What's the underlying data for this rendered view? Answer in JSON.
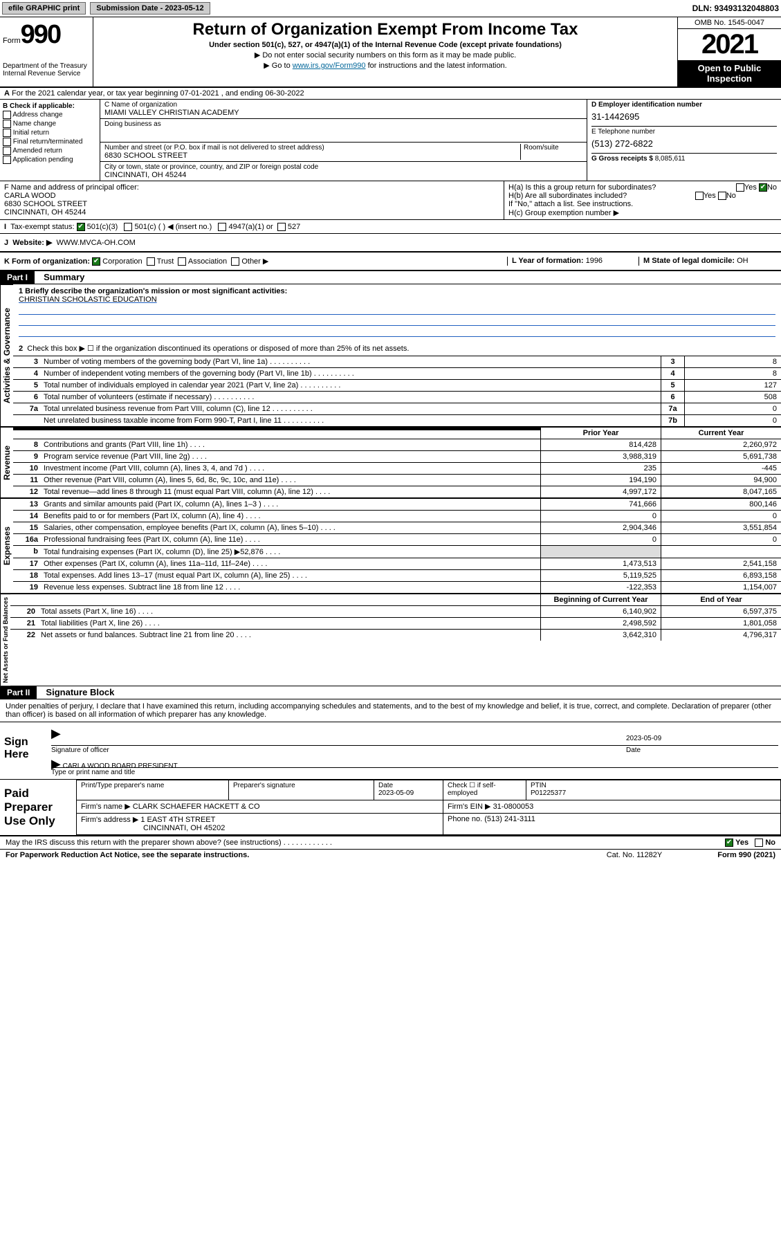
{
  "topbar": {
    "efile": "efile GRAPHIC print",
    "submission_label": "Submission Date - 2023-05-12",
    "dln": "DLN: 93493132048803"
  },
  "header": {
    "form_word": "Form",
    "form_number": "990",
    "dept": "Department of the Treasury",
    "irs": "Internal Revenue Service",
    "title": "Return of Organization Exempt From Income Tax",
    "subtitle": "Under section 501(c), 527, or 4947(a)(1) of the Internal Revenue Code (except private foundations)",
    "note1": "▶ Do not enter social security numbers on this form as it may be made public.",
    "note2_prefix": "▶ Go to ",
    "note2_link": "www.irs.gov/Form990",
    "note2_suffix": " for instructions and the latest information.",
    "omb": "OMB No. 1545-0047",
    "year": "2021",
    "open_public": "Open to Public Inspection"
  },
  "lineA": "For the 2021 calendar year, or tax year beginning 07-01-2021   , and ending 06-30-2022",
  "checkB": {
    "label": "B Check if applicable:",
    "items": [
      "Address change",
      "Name change",
      "Initial return",
      "Final return/terminated",
      "Amended return",
      "Application pending"
    ]
  },
  "blockC": {
    "name_label": "C Name of organization",
    "name": "MIAMI VALLEY CHRISTIAN ACADEMY",
    "dba_label": "Doing business as",
    "dba": "",
    "addr_label": "Number and street (or P.O. box if mail is not delivered to street address)",
    "room_label": "Room/suite",
    "addr": "6830 SCHOOL STREET",
    "city_label": "City or town, state or province, country, and ZIP or foreign postal code",
    "city": "CINCINNATI, OH  45244"
  },
  "blockD": {
    "label": "D Employer identification number",
    "ein": "31-1442695",
    "tel_label": "E Telephone number",
    "tel": "(513) 272-6822",
    "gross_label": "G Gross receipts $",
    "gross": "8,085,611"
  },
  "blockF": {
    "label": "F Name and address of principal officer:",
    "name": "CARLA WOOD",
    "addr1": "6830 SCHOOL STREET",
    "addr2": "CINCINNATI, OH  45244"
  },
  "blockH": {
    "ha": "H(a)  Is this a group return for subordinates?",
    "ha_no": "No",
    "hb": "H(b)  Are all subordinates included?",
    "hb_note": "If \"No,\" attach a list. See instructions.",
    "hc": "H(c)  Group exemption number ▶"
  },
  "lineI": {
    "label": "Tax-exempt status:",
    "c3": "501(c)(3)",
    "c_other": "501(c) (   ) ◀ (insert no.)",
    "a1": "4947(a)(1) or",
    "s527": "527"
  },
  "lineJ": {
    "label": "Website: ▶",
    "value": "WWW.MVCA-OH.COM"
  },
  "lineK": {
    "label": "K Form of organization:",
    "opts": [
      "Corporation",
      "Trust",
      "Association",
      "Other ▶"
    ]
  },
  "lineL": {
    "label": "L Year of formation:",
    "value": "1996"
  },
  "lineM": {
    "label": "M State of legal domicile:",
    "value": "OH"
  },
  "partI": {
    "hdr": "Part I",
    "title": "Summary",
    "q1_label": "1   Briefly describe the organization's mission or most significant activities:",
    "q1_value": "CHRISTIAN SCHOLASTIC EDUCATION",
    "q2": "Check this box ▶ ☐  if the organization discontinued its operations or disposed of more than 25% of its net assets.",
    "vert_gov": "Activities & Governance",
    "vert_rev": "Revenue",
    "vert_exp": "Expenses",
    "vert_net": "Net Assets or Fund Balances",
    "lines_gov": [
      {
        "n": "3",
        "d": "Number of voting members of the governing body (Part VI, line 1a)",
        "box": "3",
        "v": "8"
      },
      {
        "n": "4",
        "d": "Number of independent voting members of the governing body (Part VI, line 1b)",
        "box": "4",
        "v": "8"
      },
      {
        "n": "5",
        "d": "Total number of individuals employed in calendar year 2021 (Part V, line 2a)",
        "box": "5",
        "v": "127"
      },
      {
        "n": "6",
        "d": "Total number of volunteers (estimate if necessary)",
        "box": "6",
        "v": "508"
      },
      {
        "n": "7a",
        "d": "Total unrelated business revenue from Part VIII, column (C), line 12",
        "box": "7a",
        "v": "0"
      },
      {
        "n": "",
        "d": "Net unrelated business taxable income from Form 990-T, Part I, line 11",
        "box": "7b",
        "v": "0"
      }
    ],
    "hdr_prior": "Prior Year",
    "hdr_current": "Current Year",
    "lines_rev": [
      {
        "n": "8",
        "d": "Contributions and grants (Part VIII, line 1h)",
        "pv": "814,428",
        "cv": "2,260,972"
      },
      {
        "n": "9",
        "d": "Program service revenue (Part VIII, line 2g)",
        "pv": "3,988,319",
        "cv": "5,691,738"
      },
      {
        "n": "10",
        "d": "Investment income (Part VIII, column (A), lines 3, 4, and 7d )",
        "pv": "235",
        "cv": "-445"
      },
      {
        "n": "11",
        "d": "Other revenue (Part VIII, column (A), lines 5, 6d, 8c, 9c, 10c, and 11e)",
        "pv": "194,190",
        "cv": "94,900"
      },
      {
        "n": "12",
        "d": "Total revenue—add lines 8 through 11 (must equal Part VIII, column (A), line 12)",
        "pv": "4,997,172",
        "cv": "8,047,165"
      }
    ],
    "lines_exp": [
      {
        "n": "13",
        "d": "Grants and similar amounts paid (Part IX, column (A), lines 1–3 )",
        "pv": "741,666",
        "cv": "800,146"
      },
      {
        "n": "14",
        "d": "Benefits paid to or for members (Part IX, column (A), line 4)",
        "pv": "0",
        "cv": "0"
      },
      {
        "n": "15",
        "d": "Salaries, other compensation, employee benefits (Part IX, column (A), lines 5–10)",
        "pv": "2,904,346",
        "cv": "3,551,854"
      },
      {
        "n": "16a",
        "d": "Professional fundraising fees (Part IX, column (A), line 11e)",
        "pv": "0",
        "cv": "0"
      },
      {
        "n": "b",
        "d": "Total fundraising expenses (Part IX, column (D), line 25) ▶52,876",
        "pv": "",
        "cv": "",
        "shaded": true
      },
      {
        "n": "17",
        "d": "Other expenses (Part IX, column (A), lines 11a–11d, 11f–24e)",
        "pv": "1,473,513",
        "cv": "2,541,158"
      },
      {
        "n": "18",
        "d": "Total expenses. Add lines 13–17 (must equal Part IX, column (A), line 25)",
        "pv": "5,119,525",
        "cv": "6,893,158"
      },
      {
        "n": "19",
        "d": "Revenue less expenses. Subtract line 18 from line 12",
        "pv": "-122,353",
        "cv": "1,154,007"
      }
    ],
    "hdr_beg": "Beginning of Current Year",
    "hdr_end": "End of Year",
    "lines_net": [
      {
        "n": "20",
        "d": "Total assets (Part X, line 16)",
        "pv": "6,140,902",
        "cv": "6,597,375"
      },
      {
        "n": "21",
        "d": "Total liabilities (Part X, line 26)",
        "pv": "2,498,592",
        "cv": "1,801,058"
      },
      {
        "n": "22",
        "d": "Net assets or fund balances. Subtract line 21 from line 20",
        "pv": "3,642,310",
        "cv": "4,796,317"
      }
    ]
  },
  "partII": {
    "hdr": "Part II",
    "title": "Signature Block",
    "penalty": "Under penalties of perjury, I declare that I have examined this return, including accompanying schedules and statements, and to the best of my knowledge and belief, it is true, correct, and complete. Declaration of preparer (other than officer) is based on all information of which preparer has any knowledge.",
    "sign_here": "Sign Here",
    "sig_of_officer": "Signature of officer",
    "sig_date": "2023-05-09",
    "date_lbl": "Date",
    "officer_name": "CARLA WOOD  BOARD PRESIDENT",
    "type_name": "Type or print name and title",
    "paid": "Paid Preparer Use Only",
    "prep_name_lbl": "Print/Type preparer's name",
    "prep_sig_lbl": "Preparer's signature",
    "prep_date_lbl": "Date",
    "prep_date": "2023-05-09",
    "check_self": "Check ☐ if self-employed",
    "ptin_lbl": "PTIN",
    "ptin": "P01225377",
    "firm_name_lbl": "Firm's name    ▶",
    "firm_name": "CLARK SCHAEFER HACKETT & CO",
    "firm_ein_lbl": "Firm's EIN ▶",
    "firm_ein": "31-0800053",
    "firm_addr_lbl": "Firm's address ▶",
    "firm_addr1": "1 EAST 4TH STREET",
    "firm_addr2": "CINCINNATI, OH  45202",
    "phone_lbl": "Phone no.",
    "phone": "(513) 241-3111",
    "discuss": "May the IRS discuss this return with the preparer shown above? (see instructions)",
    "yes": "Yes",
    "no": "No"
  },
  "footer": {
    "paperwork": "For Paperwork Reduction Act Notice, see the separate instructions.",
    "cat": "Cat. No. 11282Y",
    "form": "Form 990 (2021)"
  },
  "colors": {
    "link": "#0066aa",
    "rule_blue": "#2060c0",
    "check_green": "#1a7a1a"
  }
}
